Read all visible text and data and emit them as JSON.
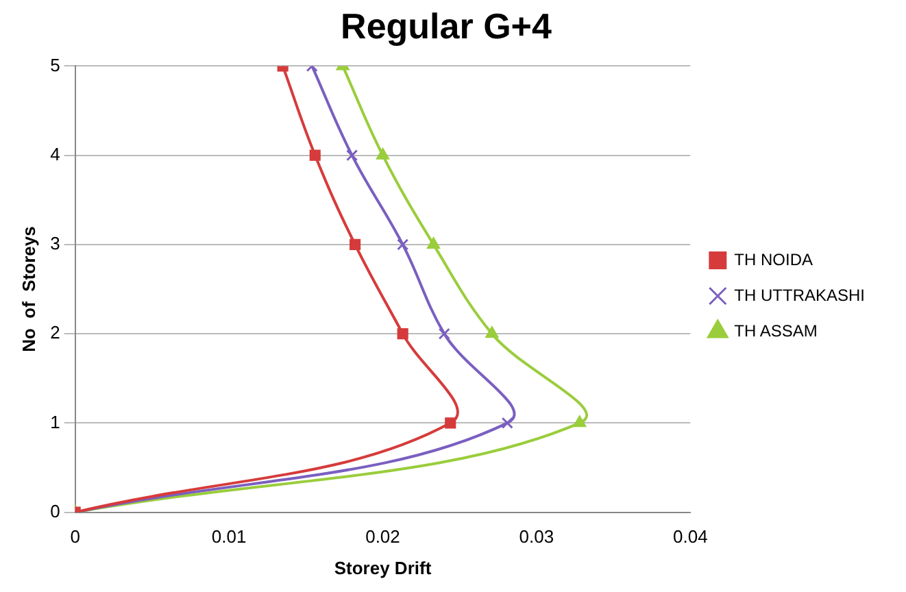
{
  "chart_data": {
    "type": "line",
    "title": "Regular G+4",
    "xlabel": "Storey Drift",
    "ylabel": "No  of  Storeys",
    "xlim": [
      0,
      0.04
    ],
    "xticks": [
      0,
      0.01,
      0.02,
      0.03,
      0.04
    ],
    "ylim": [
      0,
      5
    ],
    "yticks": [
      0,
      1,
      2,
      3,
      4,
      5
    ],
    "grid": "y",
    "legend": "right",
    "series": [
      {
        "name": "TH NOIDA",
        "color": "#d63b3b",
        "marker": "square",
        "x": [
          0,
          0.0244,
          0.0213,
          0.0182,
          0.0156,
          0.0135
        ],
        "values": [
          0,
          1,
          2,
          3,
          4,
          5
        ]
      },
      {
        "name": "TH UTTRAKASHI",
        "color": "#7a5fc0",
        "marker": "cross",
        "x": [
          0,
          0.0281,
          0.024,
          0.0213,
          0.018,
          0.0154
        ],
        "values": [
          0,
          1,
          2,
          3,
          4,
          5
        ]
      },
      {
        "name": "TH ASSAM",
        "color": "#9acd3c",
        "marker": "triangle",
        "x": [
          0,
          0.0328,
          0.0271,
          0.0233,
          0.02,
          0.0174
        ],
        "values": [
          0,
          1,
          2,
          3,
          4,
          5
        ]
      }
    ]
  }
}
